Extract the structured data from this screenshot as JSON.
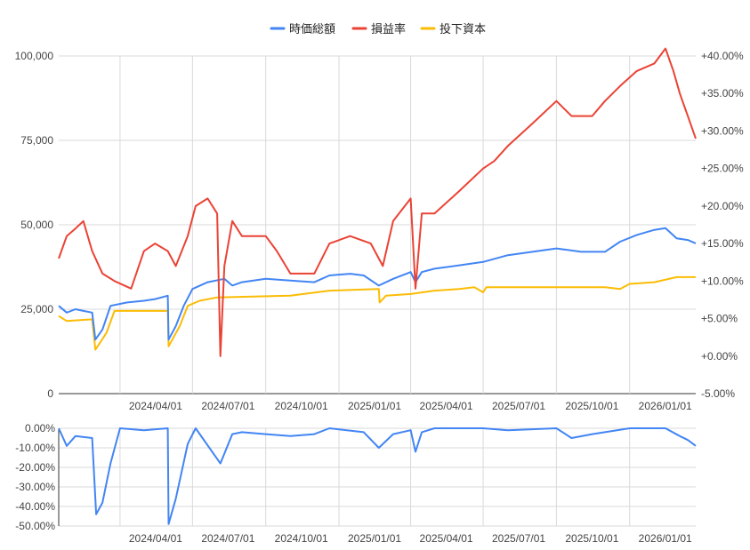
{
  "chart_data": [
    {
      "type": "line",
      "legend": {
        "position": "top",
        "entries": [
          "時価総額",
          "損益率",
          "投下資本"
        ]
      },
      "x_ticks": [
        "2024/04/01",
        "2024/07/01",
        "2024/10/01",
        "2025/01/01",
        "2025/04/01",
        "2025/07/01",
        "2025/10/01",
        "2026/01/01"
      ],
      "x_range": [
        "2024/01/15",
        "2026/03/25"
      ],
      "y_left": {
        "ylim": [
          0,
          100000
        ],
        "ticks": [
          "0",
          "25,000",
          "50,000",
          "75,000",
          "100,000"
        ]
      },
      "y_right": {
        "ylim": [
          -5,
          40
        ],
        "ticks": [
          "-5.00%",
          "+0.00%",
          "+5.00%",
          "+10.00%",
          "+15.00%",
          "+20.00%",
          "+25.00%",
          "+30.00%",
          "+35.00%",
          "+40.00%"
        ]
      },
      "grid": true,
      "series": [
        {
          "name": "時価総額",
          "color": "#4285f4",
          "axis": "left",
          "points": [
            [
              "2024/01/15",
              26000
            ],
            [
              "2024/01/25",
              24000
            ],
            [
              "2024/02/05",
              25000
            ],
            [
              "2024/02/15",
              24500
            ],
            [
              "2024/02/26",
              24000
            ],
            [
              "2024/03/01",
              16000
            ],
            [
              "2024/03/10",
              19000
            ],
            [
              "2024/03/20",
              26000
            ],
            [
              "2024/04/10",
              27000
            ],
            [
              "2024/05/01",
              27500
            ],
            [
              "2024/05/15",
              28000
            ],
            [
              "2024/05/31",
              29000
            ],
            [
              "2024/06/01",
              16000
            ],
            [
              "2024/06/10",
              20000
            ],
            [
              "2024/06/20",
              26000
            ],
            [
              "2024/07/01",
              31000
            ],
            [
              "2024/07/20",
              33000
            ],
            [
              "2024/08/10",
              34000
            ],
            [
              "2024/08/20",
              32000
            ],
            [
              "2024/09/01",
              33000
            ],
            [
              "2024/10/01",
              34000
            ],
            [
              "2024/11/01",
              33500
            ],
            [
              "2024/12/01",
              33000
            ],
            [
              "2024/12/20",
              35000
            ],
            [
              "2025/01/15",
              35500
            ],
            [
              "2025/02/01",
              35000
            ],
            [
              "2025/02/20",
              32000
            ],
            [
              "2025/03/10",
              34000
            ],
            [
              "2025/04/01",
              36000
            ],
            [
              "2025/04/07",
              33000
            ],
            [
              "2025/04/15",
              36000
            ],
            [
              "2025/05/01",
              37000
            ],
            [
              "2025/06/01",
              38000
            ],
            [
              "2025/07/01",
              39000
            ],
            [
              "2025/08/01",
              41000
            ],
            [
              "2025/09/01",
              42000
            ],
            [
              "2025/10/01",
              43000
            ],
            [
              "2025/11/01",
              42000
            ],
            [
              "2025/12/01",
              42000
            ],
            [
              "2025/12/20",
              45000
            ],
            [
              "2026/01/10",
              47000
            ],
            [
              "2026/02/01",
              48500
            ],
            [
              "2026/02/15",
              49000
            ],
            [
              "2026/03/01",
              46000
            ],
            [
              "2026/03/15",
              45500
            ],
            [
              "2026/03/25",
              44500
            ]
          ]
        },
        {
          "name": "損益率",
          "color": "#ea4335",
          "axis": "right",
          "points": [
            [
              "2024/01/15",
              13
            ],
            [
              "2024/01/25",
              16
            ],
            [
              "2024/02/05",
              17
            ],
            [
              "2024/02/15",
              18
            ],
            [
              "2024/02/26",
              14
            ],
            [
              "2024/03/10",
              11
            ],
            [
              "2024/03/25",
              10
            ],
            [
              "2024/04/15",
              9
            ],
            [
              "2024/05/01",
              14
            ],
            [
              "2024/05/15",
              15
            ],
            [
              "2024/05/31",
              14
            ],
            [
              "2024/06/10",
              12
            ],
            [
              "2024/06/25",
              16
            ],
            [
              "2024/07/05",
              20
            ],
            [
              "2024/07/20",
              21
            ],
            [
              "2024/08/01",
              19
            ],
            [
              "2024/08/05",
              0
            ],
            [
              "2024/08/10",
              12
            ],
            [
              "2024/08/20",
              18
            ],
            [
              "2024/09/01",
              16
            ],
            [
              "2024/10/01",
              16
            ],
            [
              "2024/10/15",
              14
            ],
            [
              "2024/11/01",
              11
            ],
            [
              "2024/12/01",
              11
            ],
            [
              "2024/12/20",
              15
            ],
            [
              "2025/01/15",
              16
            ],
            [
              "2025/02/10",
              15
            ],
            [
              "2025/02/25",
              12
            ],
            [
              "2025/03/10",
              18
            ],
            [
              "2025/04/01",
              21
            ],
            [
              "2025/04/07",
              9
            ],
            [
              "2025/04/15",
              19
            ],
            [
              "2025/05/01",
              19
            ],
            [
              "2025/06/01",
              22
            ],
            [
              "2025/07/01",
              25
            ],
            [
              "2025/07/15",
              26
            ],
            [
              "2025/08/01",
              28
            ],
            [
              "2025/09/01",
              31
            ],
            [
              "2025/10/01",
              34
            ],
            [
              "2025/10/20",
              32
            ],
            [
              "2025/11/15",
              32
            ],
            [
              "2025/12/01",
              34
            ],
            [
              "2025/12/20",
              36
            ],
            [
              "2026/01/10",
              38
            ],
            [
              "2026/02/01",
              39
            ],
            [
              "2026/02/15",
              41
            ],
            [
              "2026/02/25",
              38
            ],
            [
              "2026/03/05",
              35
            ],
            [
              "2026/03/15",
              32
            ],
            [
              "2026/03/25",
              29
            ]
          ]
        },
        {
          "name": "投下資本",
          "color": "#fbbc04",
          "axis": "left",
          "points": [
            [
              "2024/01/15",
              23000
            ],
            [
              "2024/01/25",
              21500
            ],
            [
              "2024/02/26",
              22000
            ],
            [
              "2024/03/01",
              13000
            ],
            [
              "2024/03/15",
              18000
            ],
            [
              "2024/03/25",
              24500
            ],
            [
              "2024/05/31",
              24500
            ],
            [
              "2024/06/01",
              14000
            ],
            [
              "2024/06/15",
              20000
            ],
            [
              "2024/06/25",
              26000
            ],
            [
              "2024/07/10",
              27500
            ],
            [
              "2024/08/01",
              28500
            ],
            [
              "2024/11/01",
              29000
            ],
            [
              "2024/12/20",
              30500
            ],
            [
              "2025/02/20",
              31000
            ],
            [
              "2025/02/21",
              27000
            ],
            [
              "2025/03/01",
              29000
            ],
            [
              "2025/04/01",
              29500
            ],
            [
              "2025/05/01",
              30500
            ],
            [
              "2025/06/01",
              31000
            ],
            [
              "2025/06/20",
              31500
            ],
            [
              "2025/07/01",
              30000
            ],
            [
              "2025/07/05",
              31500
            ],
            [
              "2025/12/01",
              31500
            ],
            [
              "2025/12/20",
              31000
            ],
            [
              "2026/01/01",
              32500
            ],
            [
              "2026/02/01",
              33000
            ],
            [
              "2026/03/01",
              34500
            ],
            [
              "2026/03/25",
              34500
            ]
          ]
        }
      ]
    },
    {
      "type": "area",
      "x_ticks": [
        "2024/04/01",
        "2024/07/01",
        "2024/10/01",
        "2025/01/01",
        "2025/04/01",
        "2025/07/01",
        "2025/10/01",
        "2026/01/01"
      ],
      "x_range": [
        "2024/01/15",
        "2026/03/25"
      ],
      "y_ticks": [
        "0.00%",
        "-10.00%",
        "-20.00%",
        "-30.00%",
        "-40.00%",
        "-50.00%"
      ],
      "ylim": [
        -50,
        0
      ],
      "grid": true,
      "series": [
        {
          "color": "#4285f4",
          "points": [
            [
              "2024/01/15",
              0
            ],
            [
              "2024/01/25",
              -9
            ],
            [
              "2024/02/05",
              -4
            ],
            [
              "2024/02/26",
              -5
            ],
            [
              "2024/03/02",
              -44
            ],
            [
              "2024/03/10",
              -38
            ],
            [
              "2024/03/20",
              -18
            ],
            [
              "2024/04/01",
              0
            ],
            [
              "2024/05/01",
              -1
            ],
            [
              "2024/05/31",
              0
            ],
            [
              "2024/06/01",
              -49
            ],
            [
              "2024/06/10",
              -36
            ],
            [
              "2024/06/25",
              -8
            ],
            [
              "2024/07/05",
              0
            ],
            [
              "2024/08/05",
              -18
            ],
            [
              "2024/08/20",
              -3
            ],
            [
              "2024/09/01",
              -2
            ],
            [
              "2024/10/01",
              -3
            ],
            [
              "2024/11/01",
              -4
            ],
            [
              "2024/12/01",
              -3
            ],
            [
              "2024/12/20",
              0
            ],
            [
              "2025/02/01",
              -2
            ],
            [
              "2025/02/20",
              -10
            ],
            [
              "2025/03/10",
              -3
            ],
            [
              "2025/04/01",
              -1
            ],
            [
              "2025/04/07",
              -12
            ],
            [
              "2025/04/15",
              -2
            ],
            [
              "2025/05/01",
              0
            ],
            [
              "2025/07/01",
              0
            ],
            [
              "2025/08/01",
              -1
            ],
            [
              "2025/10/01",
              0
            ],
            [
              "2025/10/20",
              -5
            ],
            [
              "2025/11/15",
              -3
            ],
            [
              "2025/12/01",
              -2
            ],
            [
              "2026/01/01",
              0
            ],
            [
              "2026/02/15",
              0
            ],
            [
              "2026/03/05",
              -4
            ],
            [
              "2026/03/15",
              -6
            ],
            [
              "2026/03/25",
              -9
            ]
          ]
        }
      ]
    }
  ]
}
